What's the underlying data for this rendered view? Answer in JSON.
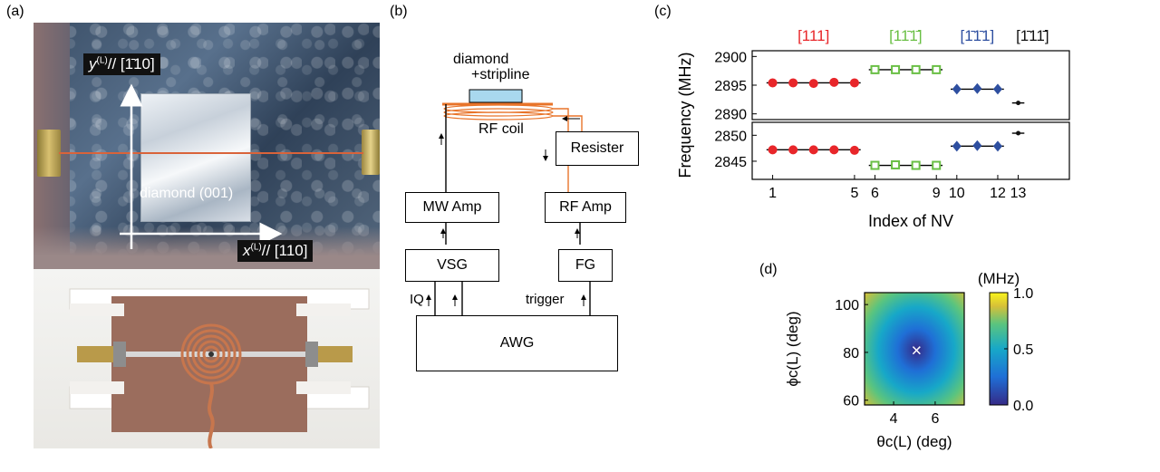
{
  "panels": {
    "a": "(a)",
    "b": "(b)",
    "c": "(c)",
    "d": "(d)"
  },
  "panel_a": {
    "y_label": "y",
    "y_sup": "(L)",
    "y_dir": "// [1̄10]",
    "x_label": "x",
    "x_sup": "(L)",
    "x_dir": "// [110]",
    "diamond_label": "diamond (001)"
  },
  "panel_b": {
    "diamond_label_1": "diamond",
    "diamond_label_2": "+stripline",
    "rf_coil": "RF coil",
    "resister": "Resister",
    "mw_amp": "MW Amp",
    "rf_amp": "RF Amp",
    "vsg": "VSG",
    "fg": "FG",
    "awg": "AWG",
    "iq": "IQ",
    "trigger": "trigger",
    "colors": {
      "rf_line": "#e8742a",
      "diamond": "#a9d8ee"
    }
  },
  "chart_data": [
    {
      "type": "scatter",
      "ylabel": "Frequency (MHz)",
      "xlabel": "Index of NV",
      "xticks": [
        "1",
        "5",
        "6",
        "9",
        "10",
        "12",
        "13"
      ],
      "xlim": [
        0,
        15.5
      ],
      "groups": [
        {
          "name": "[111]",
          "color": "#e8262a",
          "marker": "circle"
        },
        {
          "name": "[11̄1̄]",
          "color": "#6abf45",
          "marker": "square"
        },
        {
          "name": "[1̄1̄1]",
          "color": "#2e4fa0",
          "marker": "diamond"
        },
        {
          "name": "[1̄11̄]",
          "color": "#111111",
          "marker": "dot"
        }
      ],
      "upper": {
        "ylim": [
          2889,
          2901
        ],
        "yticks": [
          2890,
          2895,
          2900
        ],
        "points": [
          {
            "x": 1,
            "y": 2895.4,
            "g": 0
          },
          {
            "x": 2,
            "y": 2895.4,
            "g": 0
          },
          {
            "x": 3,
            "y": 2895.3,
            "g": 0
          },
          {
            "x": 4,
            "y": 2895.5,
            "g": 0
          },
          {
            "x": 5,
            "y": 2895.4,
            "g": 0
          },
          {
            "x": 6,
            "y": 2897.7,
            "g": 1
          },
          {
            "x": 7,
            "y": 2897.7,
            "g": 1
          },
          {
            "x": 8,
            "y": 2897.7,
            "g": 1
          },
          {
            "x": 9,
            "y": 2897.7,
            "g": 1
          },
          {
            "x": 10,
            "y": 2894.3,
            "g": 2
          },
          {
            "x": 11,
            "y": 2894.4,
            "g": 2
          },
          {
            "x": 12,
            "y": 2894.3,
            "g": 2
          },
          {
            "x": 13,
            "y": 2891.9,
            "g": 3
          }
        ],
        "lines": [
          {
            "x0": 0.7,
            "x1": 5.3,
            "y": 2895.4,
            "g": 0
          },
          {
            "x0": 5.7,
            "x1": 9.3,
            "y": 2897.7,
            "g": 1
          },
          {
            "x0": 9.7,
            "x1": 12.3,
            "y": 2894.3,
            "g": 2
          },
          {
            "x0": 12.7,
            "x1": 13.3,
            "y": 2891.9,
            "g": 3
          }
        ]
      },
      "lower": {
        "ylim": [
          2841.5,
          2852.5
        ],
        "yticks": [
          2845,
          2850
        ],
        "points": [
          {
            "x": 1,
            "y": 2847.2,
            "g": 0
          },
          {
            "x": 2,
            "y": 2847.2,
            "g": 0
          },
          {
            "x": 3,
            "y": 2847.2,
            "g": 0
          },
          {
            "x": 4,
            "y": 2847.2,
            "g": 0
          },
          {
            "x": 5,
            "y": 2847.1,
            "g": 0
          },
          {
            "x": 6,
            "y": 2844.2,
            "g": 1
          },
          {
            "x": 7,
            "y": 2844.3,
            "g": 1
          },
          {
            "x": 8,
            "y": 2844.2,
            "g": 1
          },
          {
            "x": 9,
            "y": 2844.2,
            "g": 1
          },
          {
            "x": 10,
            "y": 2847.9,
            "g": 2
          },
          {
            "x": 11,
            "y": 2848.0,
            "g": 2
          },
          {
            "x": 12,
            "y": 2847.9,
            "g": 2
          },
          {
            "x": 13,
            "y": 2850.4,
            "g": 3
          }
        ],
        "lines": [
          {
            "x0": 0.7,
            "x1": 5.3,
            "y": 2847.2,
            "g": 0
          },
          {
            "x0": 5.7,
            "x1": 9.3,
            "y": 2844.2,
            "g": 1
          },
          {
            "x0": 9.7,
            "x1": 12.3,
            "y": 2847.9,
            "g": 2
          },
          {
            "x0": 12.7,
            "x1": 13.3,
            "y": 2850.4,
            "g": 3
          }
        ]
      }
    },
    {
      "type": "heatmap",
      "xlabel": "θc(L) (deg)",
      "ylabel": "ϕc(L) (deg)",
      "xticks": [
        4,
        6
      ],
      "yticks": [
        60,
        80,
        100
      ],
      "xlim": [
        2.6,
        7.4
      ],
      "ylim": [
        58,
        105
      ],
      "min_x": 5.1,
      "min_y": 81,
      "minimum_marker": "×",
      "colorbar": {
        "title": "(MHz)",
        "ticks": [
          "1.0",
          "0.5",
          "0.0"
        ],
        "range": [
          0,
          1
        ]
      }
    }
  ]
}
